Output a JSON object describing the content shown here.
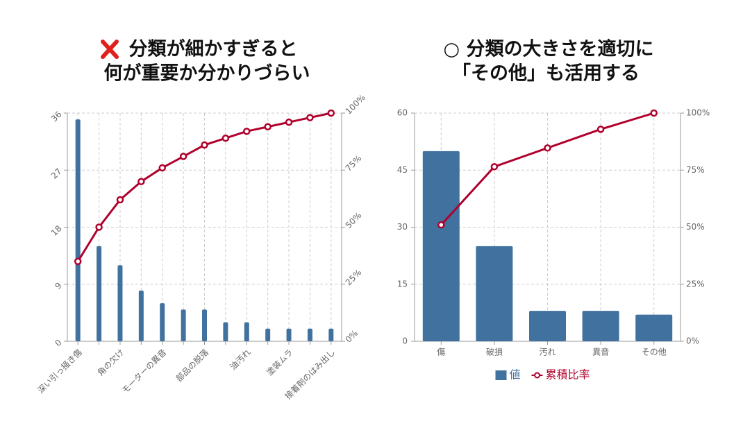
{
  "chart_data": [
    {
      "type": "pareto",
      "title": [
        "分類が細かすぎると",
        "何が重要か分かりづらい"
      ],
      "categories": [
        "深い引っ掻き傷",
        null,
        "角の欠け",
        null,
        "モーターの異音",
        null,
        "部品の脱落",
        null,
        "油汚れ",
        null,
        "塗装ムラ",
        null,
        "接着剤のはみ出し"
      ],
      "series": [
        {
          "type": "bar",
          "color": "#41729f",
          "values": [
            35,
            15,
            12,
            8,
            6,
            5,
            5,
            3,
            3,
            2,
            2,
            2,
            2
          ]
        },
        {
          "type": "line",
          "axis": "y2",
          "color": "#b0002b",
          "values": [
            35,
            50,
            62,
            70,
            76,
            81,
            86,
            89,
            92,
            94,
            96,
            98,
            100
          ]
        }
      ],
      "ylim": [
        0,
        36
      ],
      "yticks": [
        0,
        9,
        18,
        27,
        36
      ],
      "y2lim": [
        0,
        100
      ],
      "y2ticks": [
        {
          "value": 0,
          "label": "0%"
        },
        {
          "value": 25,
          "label": "25%"
        },
        {
          "value": 50,
          "label": "50%"
        },
        {
          "value": 75,
          "label": "75%"
        },
        {
          "value": 100,
          "label": "100%"
        }
      ],
      "grid": true
    },
    {
      "type": "pareto",
      "title": [
        "○ 分類の大きさを適切に",
        "「その他」も活用する"
      ],
      "categories": [
        "傷",
        "破損",
        "汚れ",
        "異音",
        "その他"
      ],
      "series": [
        {
          "type": "bar",
          "name": "値",
          "color": "#41729f",
          "values": [
            50,
            25,
            8,
            8,
            7
          ]
        },
        {
          "type": "line",
          "name": "累積比率",
          "axis": "y2",
          "color": "#b0002b",
          "values": [
            51,
            76.5,
            84.7,
            92.9,
            100
          ]
        }
      ],
      "ylim": [
        0,
        60
      ],
      "yticks": [
        0,
        15,
        30,
        45,
        60
      ],
      "y2lim": [
        0,
        100
      ],
      "y2ticks": [
        {
          "value": 0,
          "label": "0%"
        },
        {
          "value": 25,
          "label": "25%"
        },
        {
          "value": 50,
          "label": "50%"
        },
        {
          "value": 75,
          "label": "75%"
        },
        {
          "value": 100,
          "label": "100%"
        }
      ],
      "grid": true,
      "legend": "bottom"
    }
  ]
}
